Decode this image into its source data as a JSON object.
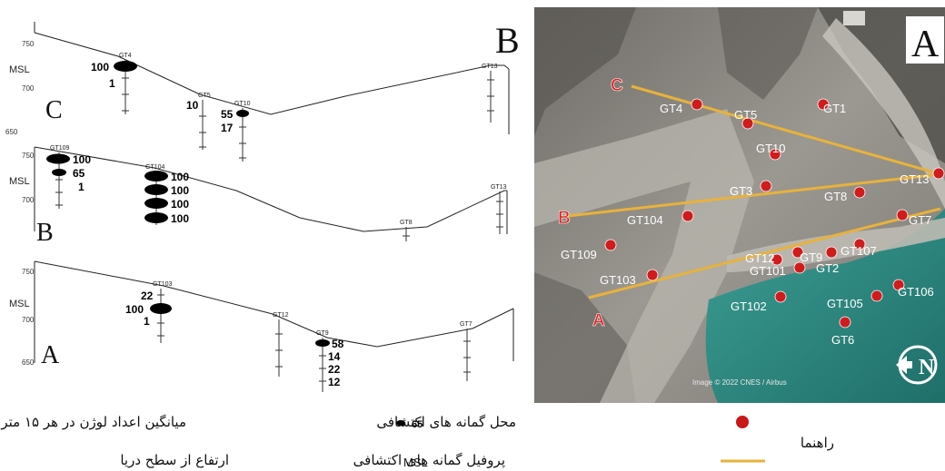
{
  "panel_letters": {
    "left": "B",
    "right": "A"
  },
  "profiles": [
    {
      "id": "C",
      "letter": "C",
      "msl_label": "MSL",
      "elev_labels": [
        "750",
        "700",
        "650"
      ],
      "boreholes": [
        {
          "name": "GT4",
          "values": [
            "100",
            "1"
          ]
        },
        {
          "name": "GT5",
          "values": [
            "10"
          ]
        },
        {
          "name": "GT10",
          "values": [
            "55",
            "17"
          ]
        },
        {
          "name": "GT13",
          "values": []
        }
      ]
    },
    {
      "id": "B",
      "letter": "B",
      "msl_label": "MSL",
      "elev_labels": [
        "750",
        "700"
      ],
      "boreholes": [
        {
          "name": "GT109",
          "values": [
            "100",
            "65",
            "1"
          ]
        },
        {
          "name": "GT104",
          "values": [
            "100",
            "100",
            "100",
            "100"
          ]
        },
        {
          "name": "GT8",
          "values": []
        },
        {
          "name": "GT13",
          "values": []
        }
      ]
    },
    {
      "id": "A",
      "letter": "A",
      "msl_label": "MSL",
      "elev_labels": [
        "750",
        "700",
        "650"
      ],
      "boreholes": [
        {
          "name": "GT103",
          "values": [
            "22",
            "100",
            "1"
          ]
        },
        {
          "name": "GT12",
          "values": []
        },
        {
          "name": "GT9",
          "values": [
            "58",
            "14",
            "22",
            "12"
          ]
        },
        {
          "name": "GT7",
          "values": []
        }
      ]
    }
  ],
  "map": {
    "profile_letters": [
      "C",
      "B",
      "A"
    ],
    "boreholes": [
      "GT4",
      "GT5",
      "GT1",
      "GT10",
      "GT13",
      "GT3",
      "GT8",
      "GT104",
      "GT7",
      "GT109",
      "GT12",
      "GT9",
      "GT107",
      "GT101",
      "GT2",
      "GT103",
      "GT102",
      "GT105",
      "GT106",
      "GT6"
    ],
    "credit": "Image © 2022 CNES / Airbus",
    "north": "N"
  },
  "legend": {
    "title": "راهنما",
    "borehole_location": "محل گمانه های اکتشافی",
    "borehole_profile": "پروفیل گمانه های اکتشافی",
    "lugeon_sample": "65",
    "lugeon_text": "میانگین اعداد لوژن در هر ۱۵ متر",
    "msl_abbr": "MSL",
    "msl_text": "ارتفاع از سطح دریا"
  },
  "colors": {
    "marker": "#d01c1c",
    "profile_line": "#e8b23a",
    "water": "#2f8f86",
    "terrain": "#8b8a86"
  }
}
